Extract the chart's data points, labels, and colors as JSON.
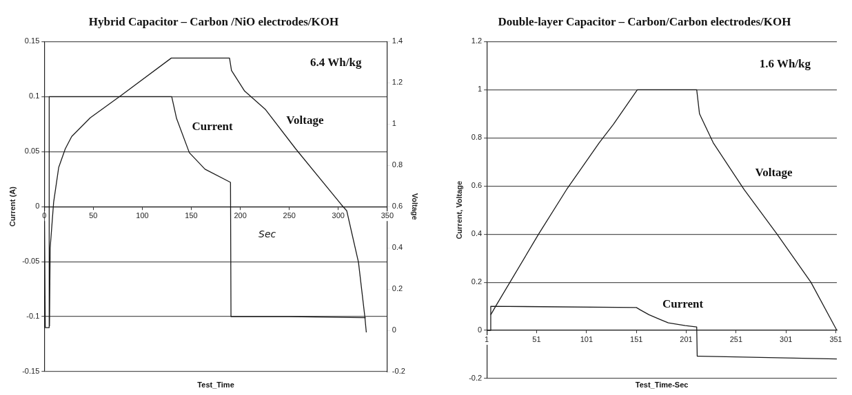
{
  "chart_data": [
    {
      "type": "line",
      "title": "Hybrid Capacitor – Carbon /NiO electrodes/KOH",
      "xlabel": "Test_Time",
      "ylabel": "Current (A)",
      "y2label": "Voltage",
      "xlim": [
        0,
        350
      ],
      "xticks": [
        0,
        50,
        100,
        150,
        200,
        250,
        300,
        350
      ],
      "ylim": [
        -0.15,
        0.15
      ],
      "yticks": [
        -0.15,
        -0.1,
        -0.05,
        0,
        0.05,
        0.1,
        0.15
      ],
      "y2lim": [
        -0.2,
        1.4
      ],
      "y2ticks": [
        -0.2,
        0,
        0.2,
        0.4,
        0.6,
        0.8,
        1,
        1.2,
        1.4
      ],
      "grid": "y",
      "marker": "none",
      "line_style": "solid",
      "annotations": [
        "6.4 Wh/kg",
        "Sec"
      ],
      "series": [
        {
          "name": "Current",
          "color": "#1a1a1a",
          "x": [
            0,
            1,
            5,
            5,
            130,
            135,
            148,
            164,
            190,
            190.5,
            250,
            328
          ],
          "values": [
            0,
            -0.11,
            -0.11,
            0.1,
            0.1,
            0.08,
            0.049,
            0.034,
            0.022,
            -0.1,
            -0.1,
            -0.101
          ]
        },
        {
          "name": "Voltage",
          "color": "#1a1a1a",
          "axis": "y2",
          "x": [
            5.3,
            6,
            9.5,
            14.7,
            21.4,
            28,
            46.8,
            78.8,
            129.6,
            189,
            191,
            204.4,
            225.8,
            256.5,
            303,
            308.6,
            320.6,
            327,
            328.6
          ],
          "values": [
            0.02,
            0.4,
            0.62,
            0.79,
            0.88,
            0.94,
            1.03,
            1.14,
            1.32,
            1.32,
            1.26,
            1.16,
            1.07,
            0.88,
            0.61,
            0.58,
            0.33,
            0.07,
            -0.01
          ]
        }
      ]
    },
    {
      "type": "line",
      "title": "Double-layer Capacitor – Carbon/Carbon electrodes/KOH",
      "xlabel": "Test_Time-Sec",
      "ylabel": "Current, Voltage",
      "xlim": [
        1,
        352
      ],
      "xticks": [
        1,
        51,
        101,
        151,
        201,
        251,
        301,
        351
      ],
      "ylim": [
        -0.2,
        1.2
      ],
      "yticks": [
        -0.2,
        0,
        0.2,
        0.4,
        0.6,
        0.8,
        1,
        1.2
      ],
      "grid": "y",
      "marker": "none",
      "line_style": "solid",
      "annotations": [
        "1.6 Wh/kg"
      ],
      "series": [
        {
          "name": "Current",
          "color": "#1a1a1a",
          "x": [
            1,
            5,
            5,
            151,
            155,
            163.7,
            175,
            183,
            200,
            211.5,
            212,
            352
          ],
          "values": [
            0,
            0,
            0.1,
            0.095,
            0.085,
            0.065,
            0.045,
            0.031,
            0.02,
            0.014,
            -0.107,
            -0.119
          ]
        },
        {
          "name": "Voltage",
          "color": "#1a1a1a",
          "x": [
            5,
            10.6,
            53,
            81,
            113.8,
            128,
            152,
            211.5,
            214.3,
            228,
            259,
            292,
            326,
            352
          ],
          "values": [
            0.065,
            0.105,
            0.4,
            0.585,
            0.78,
            0.856,
            1,
            1,
            0.9,
            0.78,
            0.585,
            0.4,
            0.2,
            0
          ]
        }
      ]
    }
  ]
}
